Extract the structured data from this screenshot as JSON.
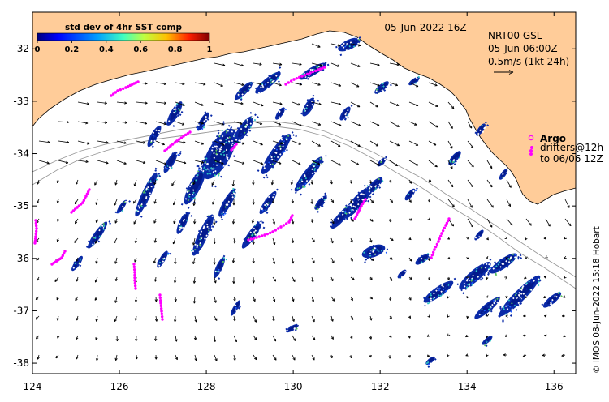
{
  "map": {
    "timestamp": "05-Jun-2022 16Z",
    "credit": "© IMOS 08-Jun-2022 15:18 Hobart",
    "colors": {
      "land": "#ffcc99",
      "ocean": "#ffffff",
      "sst_blue": "#0a2aa8",
      "sst_dark": "#001480",
      "sst_cyan": "#2ec4c4",
      "sst_green": "#58c05a",
      "argo": "#ff00ff",
      "drifter": "#ff00ff",
      "arrow": "#000000",
      "bathy": "#999999"
    }
  },
  "colorbar": {
    "title": "std dev of 4hr SST comp",
    "ticks": [
      "0",
      "0.2",
      "0.4",
      "0.6",
      "0.8",
      "1"
    ]
  },
  "axes": {
    "x_ticks": [
      "124",
      "126",
      "128",
      "130",
      "132",
      "134",
      "136"
    ],
    "y_ticks": [
      "-32",
      "-33",
      "-34",
      "-35",
      "-36",
      "-37",
      "-38"
    ]
  },
  "currents": {
    "product": "NRT00 GSL",
    "time": "05-Jun 06:00Z",
    "scale": "0.5m/s (1kt 24h)"
  },
  "legend": {
    "argo_label": "Argo",
    "drifters_line1": "drifters@12h",
    "drifters_line2": "to 06/06 12Z"
  }
}
